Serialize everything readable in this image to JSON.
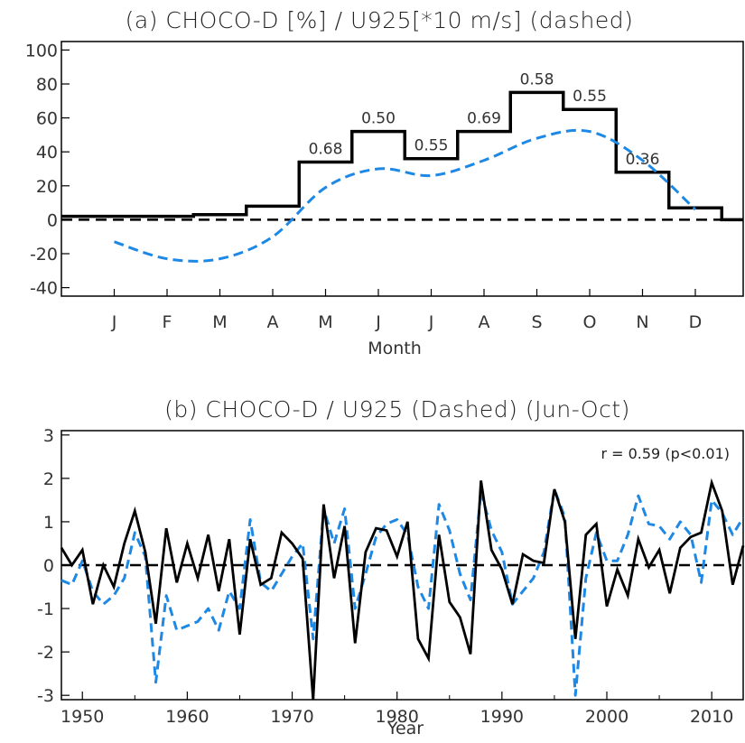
{
  "chart_data": [
    {
      "type": "line",
      "title": "(a) CHOCO-D [%] / U925[*10 m/s] (dashed)",
      "xlabel": "Month",
      "ylabel": "",
      "categories": [
        "J",
        "F",
        "M",
        "A",
        "M",
        "J",
        "J",
        "A",
        "S",
        "O",
        "N",
        "D"
      ],
      "ylim": [
        -45,
        105
      ],
      "yticks": [
        -40,
        -20,
        0,
        20,
        40,
        60,
        80,
        100
      ],
      "series": [
        {
          "style": "step",
          "color": "#000000",
          "values": [
            2,
            2,
            3,
            8,
            34,
            52,
            36,
            52,
            75,
            65,
            28,
            7
          ]
        },
        {
          "style": "dashed",
          "color": "#1e88e5",
          "values": [
            -13,
            -23,
            -23,
            -10,
            19,
            30,
            26,
            35,
            48,
            52,
            35,
            6
          ]
        }
      ],
      "zero_line": true,
      "data_labels": [
        {
          "month": 4,
          "text": "0.68"
        },
        {
          "month": 5,
          "text": "0.50"
        },
        {
          "month": 6,
          "text": "0.55"
        },
        {
          "month": 7,
          "text": "0.69"
        },
        {
          "month": 8,
          "text": "0.58"
        },
        {
          "month": 9,
          "text": "0.55"
        },
        {
          "month": 10,
          "text": "0.36"
        }
      ]
    },
    {
      "type": "line",
      "title": "(b) CHOCO-D / U925 (Dashed)   (Jun-Oct)",
      "xlabel": "Year",
      "ylabel": "",
      "xlim": [
        1948,
        2013
      ],
      "xticks": [
        1950,
        1960,
        1970,
        1980,
        1990,
        2000,
        2010
      ],
      "ylim": [
        -3.1,
        3.1
      ],
      "yticks": [
        -3,
        -2,
        -1,
        0,
        1,
        2,
        3
      ],
      "annotation": "r = 0.59 (p<0.01)",
      "zero_line": true,
      "x": [
        1948,
        1949,
        1950,
        1951,
        1952,
        1953,
        1954,
        1955,
        1956,
        1957,
        1958,
        1959,
        1960,
        1961,
        1962,
        1963,
        1964,
        1965,
        1966,
        1967,
        1968,
        1969,
        1970,
        1971,
        1972,
        1973,
        1974,
        1975,
        1976,
        1977,
        1978,
        1979,
        1980,
        1981,
        1982,
        1983,
        1984,
        1985,
        1986,
        1987,
        1988,
        1989,
        1990,
        1991,
        1992,
        1993,
        1994,
        1995,
        1996,
        1997,
        1998,
        1999,
        2000,
        2001,
        2002,
        2003,
        2004,
        2005,
        2006,
        2007,
        2008,
        2009,
        2010,
        2011,
        2012,
        2013
      ],
      "series": [
        {
          "style": "solid",
          "color": "#000000",
          "values": [
            0.4,
            0.0,
            0.35,
            -0.9,
            0.0,
            -0.5,
            0.5,
            1.25,
            0.3,
            -1.35,
            0.85,
            -0.4,
            0.5,
            -0.3,
            0.7,
            -0.6,
            0.6,
            -1.6,
            0.6,
            -0.45,
            -0.3,
            0.75,
            0.5,
            0.15,
            -3.1,
            1.4,
            -0.3,
            0.9,
            -1.8,
            0.3,
            0.85,
            0.8,
            0.2,
            1.0,
            -1.7,
            -2.15,
            0.7,
            -0.85,
            -1.2,
            -2.05,
            1.95,
            0.35,
            -0.1,
            -0.9,
            0.25,
            0.1,
            0.05,
            1.75,
            1.0,
            -1.7,
            0.7,
            0.95,
            -0.95,
            -0.1,
            -0.7,
            0.6,
            -0.05,
            0.35,
            -0.65,
            0.4,
            0.65,
            0.75,
            1.9,
            1.25,
            -0.45,
            0.45
          ]
        },
        {
          "style": "dashed",
          "color": "#1e88e5",
          "values": [
            -0.35,
            -0.45,
            0.1,
            -0.6,
            -0.9,
            -0.7,
            -0.3,
            0.75,
            0.2,
            -2.7,
            -0.7,
            -1.5,
            -1.4,
            -1.3,
            -1.0,
            -1.5,
            -0.6,
            -1.0,
            1.05,
            -0.4,
            -0.6,
            -0.2,
            0.2,
            0.5,
            -1.7,
            1.3,
            0.5,
            1.3,
            -1.0,
            -0.2,
            0.65,
            0.95,
            1.05,
            0.7,
            -0.5,
            -1.0,
            1.4,
            0.8,
            -0.2,
            -0.8,
            1.7,
            0.8,
            0.3,
            -0.9,
            -0.6,
            -0.3,
            0.3,
            1.75,
            1.1,
            -3.0,
            -0.3,
            0.75,
            0.1,
            0.1,
            0.7,
            1.6,
            0.95,
            0.9,
            0.6,
            1.0,
            0.7,
            -0.4,
            1.5,
            1.2,
            0.7,
            1.1
          ]
        }
      ]
    }
  ]
}
